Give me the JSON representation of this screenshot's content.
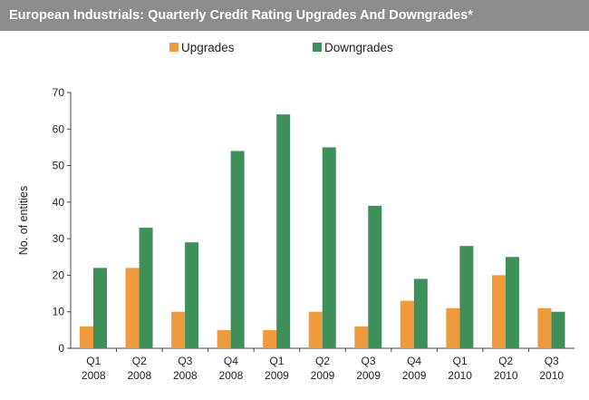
{
  "header": {
    "title": "European Industrials: Quarterly Credit Rating Upgrades And Downgrades*"
  },
  "colors": {
    "title_bar": "#8c8c8c",
    "upgrades": "#f09a3e",
    "downgrades": "#3f8f5b"
  },
  "chart_data": {
    "type": "bar",
    "title": "European Industrials: Quarterly Credit Rating Upgrades And Downgrades*",
    "xlabel": "",
    "ylabel": "No. of entities",
    "ylim": [
      0,
      70
    ],
    "yticks": [
      0,
      10,
      20,
      30,
      40,
      50,
      60,
      70
    ],
    "grid": false,
    "legend_position": "top",
    "categories": [
      [
        "Q1",
        "2008"
      ],
      [
        "Q2",
        "2008"
      ],
      [
        "Q3",
        "2008"
      ],
      [
        "Q4",
        "2008"
      ],
      [
        "Q1",
        "2009"
      ],
      [
        "Q2",
        "2009"
      ],
      [
        "Q3",
        "2009"
      ],
      [
        "Q4",
        "2009"
      ],
      [
        "Q1",
        "2010"
      ],
      [
        "Q2",
        "2010"
      ],
      [
        "Q3",
        "2010"
      ]
    ],
    "series": [
      {
        "name": "Upgrades",
        "color": "#f09a3e",
        "values": [
          6,
          22,
          10,
          5,
          5,
          10,
          6,
          13,
          11,
          20,
          11
        ]
      },
      {
        "name": "Downgrades",
        "color": "#3f8f5b",
        "values": [
          22,
          33,
          29,
          54,
          64,
          55,
          39,
          19,
          28,
          25,
          10
        ]
      }
    ]
  }
}
